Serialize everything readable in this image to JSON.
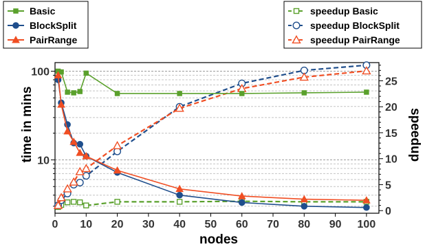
{
  "chart_data": {
    "type": "line",
    "xlabel": "nodes",
    "ylabel_left": "time in mins",
    "ylabel_right": "speedup",
    "x_ticks": [
      0,
      10,
      20,
      30,
      40,
      50,
      60,
      70,
      80,
      90,
      100
    ],
    "y_left_scale": "log",
    "y_left_ticks": [
      10,
      100
    ],
    "y_left_range": [
      2.5,
      125
    ],
    "y_right_ticks": [
      0,
      5,
      10,
      15,
      20,
      25
    ],
    "y_right_range": [
      -0.5,
      28.5
    ],
    "x_range": [
      0,
      104
    ],
    "colors": {
      "basic": "#5aa02c",
      "blocksplit": "#1f4e8c",
      "pairrange": "#f04e23"
    },
    "legend_left": {
      "position": "top-left",
      "items": [
        {
          "name": "Basic",
          "series": "basic",
          "marker": "square"
        },
        {
          "name": "BlockSplit",
          "series": "blocksplit",
          "marker": "circle"
        },
        {
          "name": "PairRange",
          "series": "pairrange",
          "marker": "triangle"
        }
      ]
    },
    "legend_right": {
      "position": "top-right",
      "items": [
        {
          "name": "speedup Basic",
          "series": "basic",
          "marker": "square-open"
        },
        {
          "name": "speedup BlockSplit",
          "series": "blocksplit",
          "marker": "circle-open"
        },
        {
          "name": "speedup PairRange",
          "series": "pairrange",
          "marker": "triangle-open"
        }
      ]
    },
    "time_series": [
      {
        "name": "Basic",
        "key": "basic",
        "marker": "square",
        "x": [
          1,
          2,
          4,
          6,
          8,
          10,
          20,
          40,
          60,
          80,
          100
        ],
        "y": [
          100,
          98,
          58,
          57,
          59,
          95,
          56,
          56,
          56,
          57,
          58
        ]
      },
      {
        "name": "BlockSplit",
        "key": "blocksplit",
        "marker": "circle",
        "x": [
          1,
          2,
          4,
          6,
          8,
          10,
          20,
          40,
          60,
          80,
          100
        ],
        "y": [
          80,
          44,
          25,
          15.5,
          15,
          11,
          7.2,
          4,
          3.3,
          3,
          2.9
        ]
      },
      {
        "name": "PairRange",
        "key": "pairrange",
        "marker": "triangle",
        "x": [
          1,
          2,
          4,
          6,
          8,
          10,
          20,
          40,
          60,
          80,
          100
        ],
        "y": [
          90,
          42,
          21,
          16,
          12,
          11,
          7.6,
          4.7,
          3.9,
          3.6,
          3.5
        ]
      }
    ],
    "speedup_series": [
      {
        "name": "speedup Basic",
        "key": "basic",
        "marker": "square-open",
        "x": [
          1,
          2,
          4,
          6,
          8,
          10,
          20,
          40,
          60,
          80,
          100
        ],
        "y": [
          0.7,
          1.1,
          1.6,
          1.7,
          1.6,
          1.0,
          1.7,
          1.7,
          1.8,
          1.7,
          1.7
        ]
      },
      {
        "name": "speedup BlockSplit",
        "key": "blocksplit",
        "marker": "circle-open",
        "x": [
          1,
          2,
          4,
          6,
          8,
          10,
          20,
          40,
          60,
          80,
          100
        ],
        "y": [
          1,
          2,
          3.3,
          5,
          5.4,
          6.7,
          11.4,
          20,
          24.5,
          27,
          28
        ]
      },
      {
        "name": "speedup PairRange",
        "key": "pairrange",
        "marker": "triangle-open",
        "x": [
          1,
          2,
          4,
          6,
          8,
          10,
          20,
          40,
          60,
          80,
          100
        ],
        "y": [
          1,
          2.5,
          4.2,
          5.5,
          7.5,
          8.1,
          12.5,
          19.7,
          23.5,
          25.7,
          26.9
        ]
      }
    ]
  }
}
